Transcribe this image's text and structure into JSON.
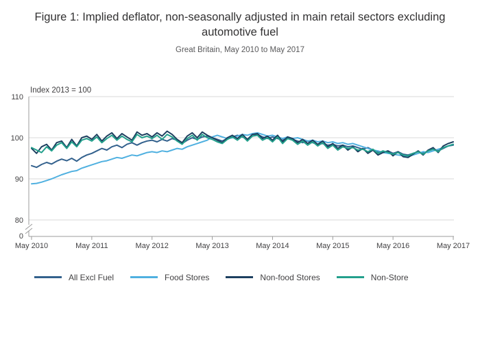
{
  "title": "Figure 1: Implied deflator, non-seasonally adjusted in main retail sectors excluding automotive fuel",
  "subtitle": "Great Britain, May 2010 to May 2017",
  "chart_data": {
    "type": "line",
    "axis_label": "Index 2013 = 100",
    "x_tick_labels": [
      "May 2010",
      "May 2011",
      "May 2012",
      "May 2013",
      "May 2014",
      "May 2015",
      "May 2016",
      "May 2017"
    ],
    "y_ticks": [
      110,
      100,
      90,
      80
    ],
    "y_break_label": "0",
    "ylim": [
      80,
      110
    ],
    "x_frequency": "monthly",
    "grid": "horizontal",
    "legend_position": "bottom",
    "series": [
      {
        "name": "All Excl Fuel",
        "color": "#33618d",
        "values": [
          93.2,
          92.8,
          93.5,
          94.0,
          93.6,
          94.3,
          94.8,
          94.4,
          95.0,
          94.3,
          95.2,
          95.8,
          96.2,
          96.8,
          97.4,
          97.0,
          97.8,
          98.2,
          97.6,
          98.4,
          98.8,
          98.2,
          98.8,
          99.2,
          99.4,
          99.0,
          99.6,
          99.2,
          99.8,
          99.4,
          98.6,
          99.4,
          100.0,
          99.6,
          100.2,
          100.4,
          100.0,
          99.6,
          99.2,
          99.8,
          100.2,
          100.6,
          100.2,
          99.6,
          100.4,
          100.8,
          100.2,
          99.8,
          100.2,
          99.8,
          99.4,
          100.0,
          99.6,
          99.2,
          98.8,
          99.2,
          98.8,
          98.4,
          98.6,
          98.2,
          98.4,
          98.0,
          98.2,
          97.8,
          98.0,
          97.6,
          97.2,
          97.6,
          97.0,
          96.6,
          96.4,
          96.8,
          96.2,
          96.6,
          96.0,
          95.8,
          96.2,
          96.6,
          96.2,
          96.8,
          97.2,
          96.8,
          97.4,
          98.0,
          98.2
        ]
      },
      {
        "name": "Food Stores",
        "color": "#4fb0e0",
        "values": [
          88.8,
          88.9,
          89.2,
          89.6,
          90.0,
          90.5,
          91.0,
          91.4,
          91.8,
          92.0,
          92.6,
          93.0,
          93.4,
          93.8,
          94.2,
          94.4,
          94.8,
          95.2,
          95.0,
          95.4,
          95.8,
          95.6,
          96.0,
          96.4,
          96.6,
          96.4,
          96.8,
          96.6,
          97.0,
          97.4,
          97.2,
          97.8,
          98.2,
          98.6,
          99.0,
          99.4,
          100.2,
          100.6,
          100.2,
          99.8,
          100.0,
          100.4,
          100.8,
          100.6,
          101.0,
          101.2,
          100.8,
          100.4,
          100.6,
          100.2,
          99.8,
          100.2,
          99.8,
          100.0,
          99.6,
          99.2,
          99.4,
          99.0,
          99.2,
          98.8,
          99.0,
          98.6,
          98.8,
          98.4,
          98.6,
          98.2,
          97.8,
          97.4,
          97.0,
          96.8,
          96.4,
          96.2,
          96.0,
          95.8,
          95.6,
          95.4,
          95.8,
          96.2,
          96.6,
          96.4,
          96.8,
          97.2,
          97.6,
          98.0,
          98.4
        ]
      },
      {
        "name": "Non-food Stores",
        "color": "#1c3f5f",
        "values": [
          97.4,
          96.2,
          97.8,
          98.4,
          97.0,
          98.8,
          99.2,
          97.6,
          99.6,
          98.0,
          100.0,
          100.4,
          99.6,
          100.8,
          99.2,
          100.4,
          101.2,
          99.8,
          101.0,
          100.2,
          99.4,
          101.4,
          100.6,
          101.0,
          100.2,
          101.2,
          100.4,
          101.6,
          100.8,
          99.6,
          98.8,
          100.4,
          101.2,
          100.0,
          101.4,
          100.6,
          100.0,
          99.4,
          98.8,
          100.0,
          100.6,
          99.8,
          100.8,
          99.6,
          100.8,
          101.0,
          99.8,
          100.4,
          99.4,
          100.6,
          99.0,
          100.2,
          99.8,
          98.8,
          99.6,
          98.6,
          99.4,
          98.4,
          99.2,
          97.8,
          98.6,
          97.4,
          98.2,
          97.0,
          97.8,
          96.6,
          97.4,
          96.2,
          97.0,
          95.8,
          96.4,
          96.8,
          95.6,
          96.6,
          95.4,
          95.2,
          96.0,
          96.8,
          95.8,
          97.0,
          97.6,
          96.4,
          98.0,
          98.6,
          99.0
        ]
      },
      {
        "name": "Non-Store",
        "color": "#23a08c",
        "values": [
          97.6,
          97.0,
          96.4,
          97.8,
          96.8,
          98.2,
          98.8,
          97.4,
          99.0,
          97.8,
          99.4,
          99.8,
          99.2,
          100.2,
          98.8,
          99.8,
          100.6,
          99.4,
          100.4,
          99.6,
          99.0,
          100.8,
          100.0,
          100.4,
          99.8,
          100.6,
          99.6,
          100.8,
          100.2,
          99.2,
          98.4,
          99.8,
          100.6,
          99.4,
          100.8,
          100.0,
          99.6,
          99.0,
          98.6,
          99.6,
          100.2,
          99.4,
          100.4,
          99.2,
          100.4,
          100.6,
          99.4,
          100.0,
          99.0,
          100.2,
          98.6,
          99.8,
          99.4,
          98.4,
          99.2,
          98.2,
          99.0,
          98.0,
          98.8,
          97.4,
          98.2,
          97.0,
          97.8,
          97.4,
          97.6,
          97.0,
          97.2,
          96.6,
          97.2,
          96.2,
          96.8,
          96.4,
          96.0,
          96.4,
          95.8,
          95.6,
          96.2,
          96.6,
          96.0,
          96.8,
          97.2,
          96.6,
          97.6,
          98.0,
          98.4
        ]
      }
    ]
  }
}
